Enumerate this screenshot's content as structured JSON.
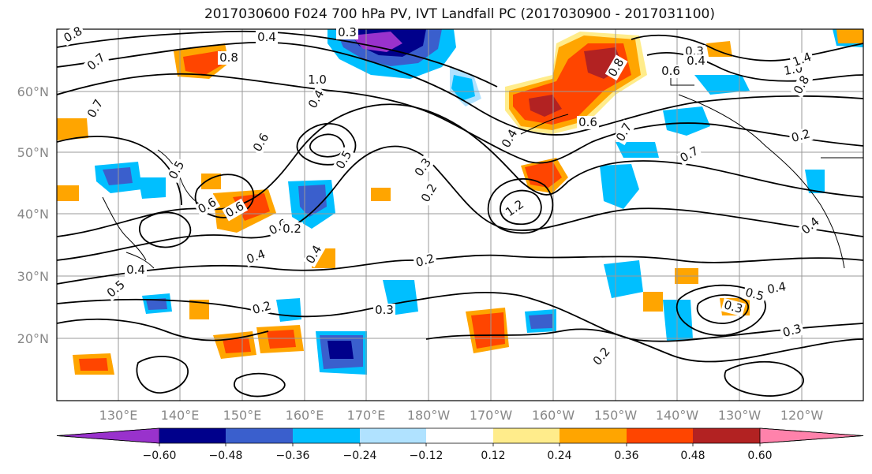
{
  "title": "2017030600 F024 700 hPa PV, IVT Landfall PC (2017030900 - 2017031100)",
  "latitude_labels": [
    "60°N",
    "50°N",
    "40°N",
    "30°N",
    "20°N"
  ],
  "longitude_labels": [
    "130°E",
    "140°E",
    "150°E",
    "160°E",
    "170°E",
    "180°W",
    "170°W",
    "160°W",
    "150°W",
    "140°W",
    "130°W",
    "120°W"
  ],
  "contour_labels": [
    "0.8",
    "0.4",
    "0.3",
    "0.7",
    "0.8",
    "1.0",
    "0.7",
    "0.4",
    "0.5",
    "0.6",
    "0.6",
    "0.5",
    "0.6",
    "0.6",
    "0.4",
    "0.4",
    "0.2",
    "0.3",
    "0.2",
    "0.5",
    "0.4",
    "0.2",
    "0.3",
    "0.2",
    "1.2",
    "0.4",
    "0.6",
    "0.7",
    "0.8",
    "0.6",
    "0.3",
    "0.4",
    "1.0",
    "1.4",
    "0.8",
    "0.2",
    "0.7",
    "0.4",
    "0.3",
    "0.4",
    "0.5",
    "0.3",
    "0.2"
  ],
  "colorbar": {
    "tick_labels": [
      "−0.60",
      "−0.48",
      "−0.36",
      "−0.24",
      "−0.12",
      "0.12",
      "0.24",
      "0.36",
      "0.48",
      "0.60"
    ],
    "colors": [
      "#9932cc",
      "#00008b",
      "#3a5fcd",
      "#00bfff",
      "#b0e2ff",
      "#ffffff",
      "#ffec8b",
      "#ffa500",
      "#ff4500",
      "#b22222",
      "#ff82ab"
    ]
  }
}
